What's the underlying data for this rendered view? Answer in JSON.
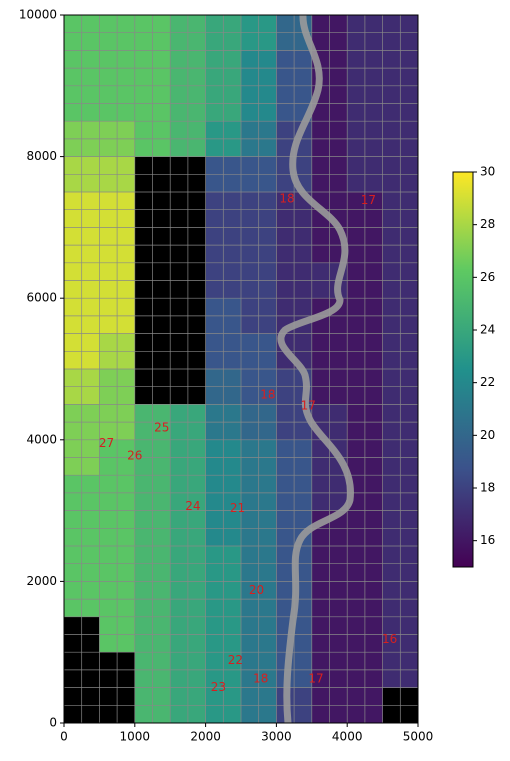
{
  "chart_data": {
    "type": "heatmap",
    "x_edges": [
      0,
      500,
      1000,
      1500,
      2000,
      2500,
      3000,
      3500,
      4000,
      4500,
      5000
    ],
    "y_edges": [
      10000,
      9500,
      9000,
      8500,
      8000,
      7500,
      7000,
      6500,
      6000,
      5500,
      5000,
      4500,
      4000,
      3500,
      3000,
      2500,
      2000,
      1500,
      1000,
      500,
      0
    ],
    "z": [
      [
        26,
        26,
        26,
        25,
        24,
        23,
        20,
        16,
        17,
        17
      ],
      [
        26,
        26,
        26,
        25,
        24,
        22,
        19,
        16,
        17,
        17
      ],
      [
        26,
        26,
        26,
        25,
        24,
        22,
        19,
        16,
        17,
        17
      ],
      [
        27,
        27,
        26,
        25,
        23,
        21,
        18,
        16,
        17,
        17
      ],
      [
        28,
        28,
        null,
        null,
        19,
        19,
        18,
        16,
        17,
        17
      ],
      [
        29,
        29,
        null,
        null,
        18,
        18,
        17,
        16,
        16,
        17
      ],
      [
        29,
        29,
        null,
        null,
        18,
        18,
        17,
        16,
        16,
        17
      ],
      [
        29,
        29,
        null,
        null,
        18,
        18,
        17,
        17,
        16,
        17
      ],
      [
        29,
        29,
        null,
        null,
        19,
        18,
        17,
        16,
        16,
        17
      ],
      [
        29,
        28,
        null,
        null,
        19,
        19,
        17,
        16,
        16,
        17
      ],
      [
        28,
        27,
        null,
        null,
        20,
        19,
        18,
        16,
        16,
        17
      ],
      [
        27,
        27,
        25,
        24,
        21,
        20,
        18,
        17,
        16,
        17
      ],
      [
        27,
        26,
        25,
        24,
        22,
        21,
        19,
        17,
        16,
        17
      ],
      [
        26,
        26,
        25,
        24,
        22,
        21,
        19,
        17,
        16,
        17
      ],
      [
        26,
        26,
        25,
        24,
        22,
        21,
        19,
        16,
        16,
        17
      ],
      [
        26,
        26,
        25,
        24,
        23,
        21,
        19,
        16,
        16,
        17
      ],
      [
        26,
        26,
        25,
        24,
        23,
        21,
        19,
        16,
        16,
        17
      ],
      [
        null,
        26,
        25,
        24,
        23,
        21,
        19,
        16,
        16,
        17
      ],
      [
        null,
        null,
        25,
        24,
        23,
        21,
        19,
        16,
        16,
        17
      ],
      [
        null,
        null,
        25,
        24,
        23,
        21,
        18,
        16,
        16,
        null
      ]
    ],
    "xlim": [
      0,
      5000
    ],
    "ylim": [
      0,
      10000
    ],
    "xticks": [
      0,
      1000,
      2000,
      3000,
      4000,
      5000
    ],
    "yticks": [
      0,
      2000,
      4000,
      6000,
      8000,
      10000
    ],
    "clim": [
      15,
      30
    ],
    "cticks": [
      16,
      18,
      20,
      22,
      24,
      26,
      28,
      30
    ],
    "contour_labels": {
      "values": [
        27,
        26,
        25,
        24,
        21,
        20,
        22,
        23,
        18,
        17,
        16,
        17,
        18,
        18,
        17
      ],
      "x": [
        600,
        1000,
        1380,
        1820,
        2450,
        2720,
        2420,
        2180,
        2780,
        3560,
        4600,
        4300,
        3150,
        2880,
        3450
      ],
      "y": [
        3950,
        3770,
        4170,
        3060,
        3030,
        1870,
        880,
        500,
        620,
        620,
        1180,
        7380,
        7400,
        4630,
        4480
      ]
    }
  }
}
